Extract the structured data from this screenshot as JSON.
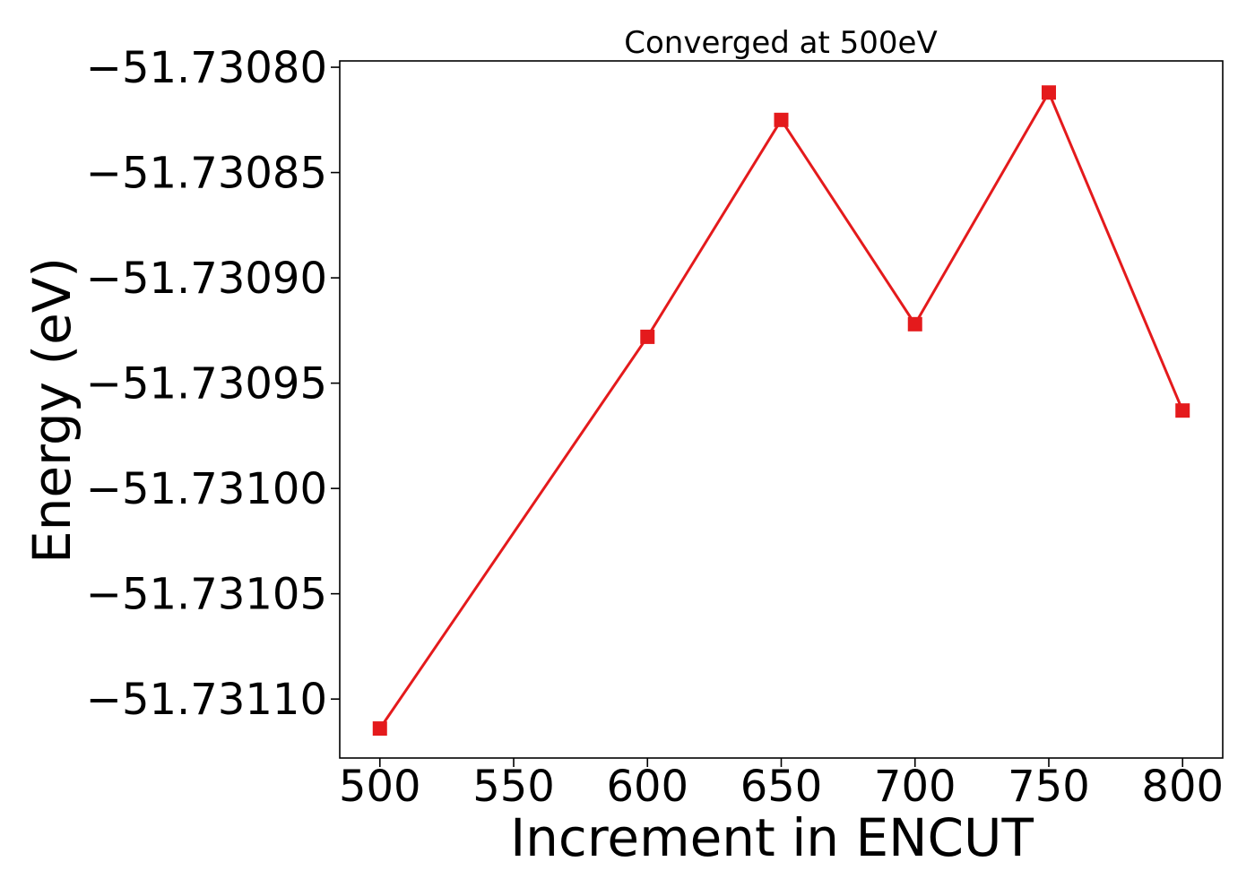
{
  "chart_data": {
    "type": "line",
    "title": "Converged at 500eV",
    "xlabel": "Increment in ENCUT",
    "ylabel": "Energy (eV)",
    "xlim": [
      485,
      815
    ],
    "ylim": [
      -51.731128,
      -51.730797
    ],
    "x_ticks": [
      500,
      550,
      600,
      650,
      700,
      750,
      800
    ],
    "x_tick_labels": [
      "500",
      "550",
      "600",
      "650",
      "700",
      "750",
      "800"
    ],
    "y_ticks": [
      -51.7308,
      -51.73085,
      -51.7309,
      -51.73095,
      -51.731,
      -51.73105,
      -51.7311
    ],
    "y_tick_labels": [
      "−51.73080",
      "−51.73085",
      "−51.73090",
      "−51.73095",
      "−51.73100",
      "−51.73105",
      "−51.73110"
    ],
    "grid": false,
    "legend": "none",
    "series": [
      {
        "color": "#e41a1c",
        "marker": "square",
        "x": [
          500,
          600,
          650,
          700,
          750,
          800
        ],
        "y": [
          -51.731114,
          -51.730928,
          -51.730825,
          -51.730922,
          -51.730812,
          -51.730963
        ]
      }
    ]
  }
}
